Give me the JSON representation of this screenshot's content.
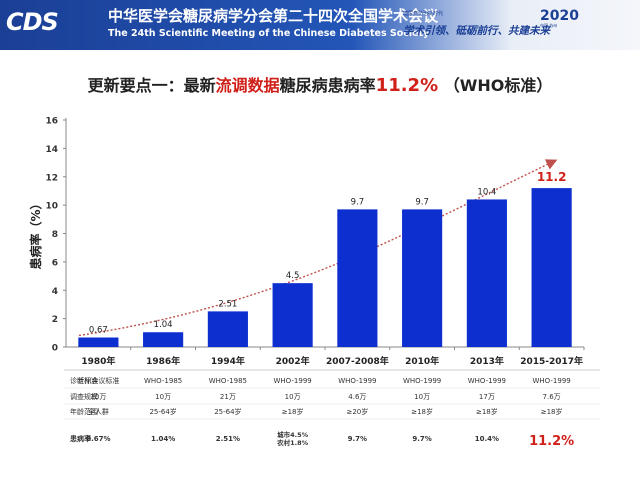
{
  "header": {
    "logo_text": "CDS",
    "conference_cn": "中华医学会糖尿病学分会第二十四次全国学术会议",
    "conference_en": "The 24th Scientific Meeting of the Chinese Diabetes Society",
    "slogan_small": "糖尿病防治新时代",
    "slogan": "学术引领、砥砺前行、共建未来",
    "year": "2020",
    "location": "中国·苏州"
  },
  "title": {
    "part1": "更新要点一：最新",
    "highlight": "流调数据",
    "part2": "糖尿病患病率",
    "value": "11.2%",
    "part3": "（WHO标准）"
  },
  "chart_data": {
    "type": "bar",
    "categories": [
      "1980年",
      "1986年",
      "1994年",
      "2002年",
      "2007-2008年",
      "2010年",
      "2013年",
      "2015-2017年"
    ],
    "values": [
      0.67,
      1.04,
      2.51,
      4.5,
      9.7,
      9.7,
      10.4,
      11.2
    ],
    "value_labels": [
      "0.67",
      "1.04",
      "2.51",
      "4.5",
      "9.7",
      "9.7",
      "10.4",
      "11.2"
    ],
    "ylabel": "患病率（%）",
    "ylim": [
      0,
      16
    ],
    "yticks": [
      0,
      2,
      4,
      6,
      8,
      10,
      12,
      14,
      16
    ],
    "grid": false,
    "trend_arrow": true,
    "colors": {
      "bar": "#0d2fd0",
      "highlight_label": "#d0201a",
      "trend": "#c0504d"
    }
  },
  "table": {
    "rows": [
      {
        "label": "诊断标准",
        "cells": [
          "兰州会议标准",
          "WHO-1985",
          "WHO-1985",
          "WHO-1999",
          "WHO-1999",
          "WHO-1999",
          "WHO-1999",
          "WHO-1999"
        ]
      },
      {
        "label": "调查规模",
        "cells": [
          "30万",
          "10万",
          "21万",
          "10万",
          "4.6万",
          "10万",
          "17万",
          "7.6万"
        ]
      },
      {
        "label": "年龄范围",
        "cells": [
          "全人群",
          "25-64岁",
          "25-64岁",
          "≥18岁",
          "≥20岁",
          "≥18岁",
          "≥18岁",
          "≥18岁"
        ]
      }
    ],
    "prevalence_label": "患病率",
    "prevalence": [
      "0.67%",
      "1.04%",
      "2.51%",
      "",
      "9.7%",
      "9.7%",
      "10.4%",
      "11.2%"
    ],
    "prevalence_2002_urban": "城市4.5%",
    "prevalence_2002_rural": "农村1.8%"
  }
}
